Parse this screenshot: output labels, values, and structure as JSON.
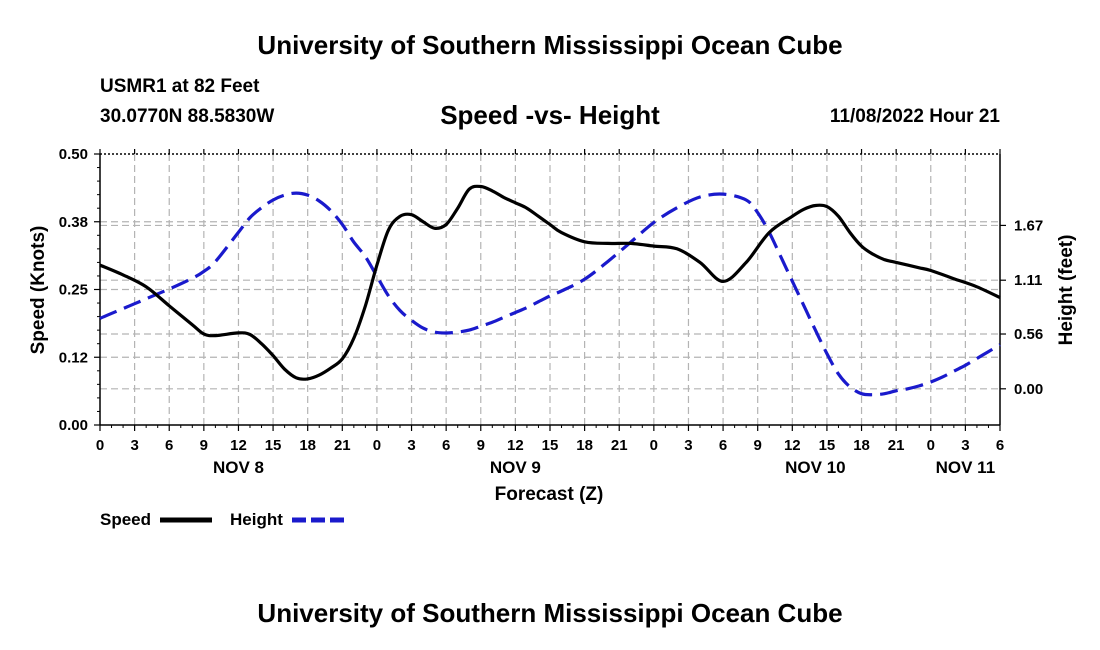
{
  "header": {
    "title": "University of Southern Mississippi Ocean Cube",
    "station": "USMR1 at 82 Feet",
    "coords": "30.0770N  88.5830W",
    "subtitle": "Speed -vs- Height",
    "datetime": "11/08/2022 Hour 21"
  },
  "footer": {
    "title": "University of Southern Mississippi Ocean Cube"
  },
  "legend": {
    "speed_label": "Speed",
    "height_label": "Height"
  },
  "colors": {
    "speed": "#000000",
    "height": "#1a1acc",
    "grid": "#b4b4b4"
  },
  "chart_data": {
    "type": "line",
    "title": "Speed -vs- Height",
    "xlabel": "Forecast (Z)",
    "ylabel": "Speed (Knots)",
    "y2label": "Height (feet)",
    "xlim": [
      0,
      78
    ],
    "ylim": [
      0,
      0.5
    ],
    "y2lim": [
      -0.37,
      2.4
    ],
    "yticks": [
      "0.00",
      "0.12",
      "0.25",
      "0.38",
      "0.50"
    ],
    "y2ticks": [
      "0.00",
      "0.56",
      "1.11",
      "1.67"
    ],
    "y2tick_values": [
      0,
      0.56,
      1.11,
      1.67
    ],
    "xtick_labels": [
      "0",
      "3",
      "6",
      "9",
      "12",
      "15",
      "18",
      "21",
      "0",
      "3",
      "6",
      "9",
      "12",
      "15",
      "18",
      "21",
      "0",
      "3",
      "6",
      "9",
      "12",
      "15",
      "18",
      "21",
      "0",
      "3",
      "6"
    ],
    "date_labels": [
      {
        "label": "NOV 8",
        "hour": 12
      },
      {
        "label": "NOV 9",
        "hour": 36
      },
      {
        "label": "NOV 10",
        "hour": 62
      },
      {
        "label": "NOV 11",
        "hour": 75
      }
    ],
    "series": [
      {
        "name": "Speed",
        "axis": "left",
        "style": "solid",
        "x": [
          0,
          2,
          4,
          6,
          8,
          9,
          10,
          12,
          13,
          14,
          15,
          16,
          17,
          18,
          19,
          20,
          21,
          22,
          23,
          24,
          25,
          26,
          27,
          28,
          29,
          30,
          31,
          32,
          33,
          34,
          35,
          36,
          37,
          38,
          39,
          40,
          42,
          44,
          46,
          48,
          50,
          52,
          54,
          56,
          58,
          60,
          61,
          62,
          63,
          64,
          65,
          66,
          67,
          68,
          69,
          70,
          71,
          72,
          74,
          76,
          78
        ],
        "y": [
          0.295,
          0.277,
          0.255,
          0.22,
          0.185,
          0.168,
          0.165,
          0.17,
          0.167,
          0.15,
          0.128,
          0.103,
          0.087,
          0.085,
          0.092,
          0.105,
          0.122,
          0.16,
          0.22,
          0.295,
          0.36,
          0.385,
          0.388,
          0.375,
          0.363,
          0.37,
          0.4,
          0.435,
          0.44,
          0.432,
          0.42,
          0.41,
          0.4,
          0.385,
          0.37,
          0.355,
          0.338,
          0.335,
          0.335,
          0.33,
          0.325,
          0.3,
          0.265,
          0.3,
          0.355,
          0.385,
          0.398,
          0.405,
          0.403,
          0.385,
          0.355,
          0.33,
          0.315,
          0.305,
          0.3,
          0.295,
          0.29,
          0.285,
          0.27,
          0.255,
          0.235
        ]
      },
      {
        "name": "Height",
        "axis": "right",
        "style": "dashed",
        "x": [
          0,
          2,
          4,
          6,
          8,
          9,
          10,
          12,
          13,
          14,
          15,
          16,
          17,
          18,
          19,
          20,
          21,
          22,
          23,
          24,
          25,
          26,
          27,
          28,
          29,
          30,
          31,
          32,
          33,
          34,
          35,
          36,
          37,
          38,
          39,
          40,
          42,
          44,
          46,
          48,
          50,
          52,
          54,
          56,
          57,
          58,
          59,
          60,
          61,
          62,
          63,
          64,
          65,
          66,
          67,
          68,
          69,
          70,
          71,
          72,
          73,
          74,
          75,
          76,
          77,
          78
        ],
        "y": [
          0.72,
          0.82,
          0.92,
          1.02,
          1.13,
          1.2,
          1.3,
          1.6,
          1.75,
          1.85,
          1.93,
          1.98,
          2.0,
          1.98,
          1.92,
          1.82,
          1.68,
          1.5,
          1.35,
          1.15,
          0.95,
          0.8,
          0.7,
          0.62,
          0.58,
          0.57,
          0.58,
          0.6,
          0.64,
          0.68,
          0.73,
          0.78,
          0.83,
          0.89,
          0.95,
          1.0,
          1.12,
          1.3,
          1.5,
          1.7,
          1.85,
          1.96,
          1.99,
          1.93,
          1.8,
          1.6,
          1.35,
          1.1,
          0.85,
          0.6,
          0.36,
          0.15,
          0.02,
          -0.05,
          -0.06,
          -0.05,
          -0.02,
          0.0,
          0.03,
          0.07,
          0.12,
          0.18,
          0.24,
          0.31,
          0.38,
          0.45
        ]
      }
    ]
  }
}
